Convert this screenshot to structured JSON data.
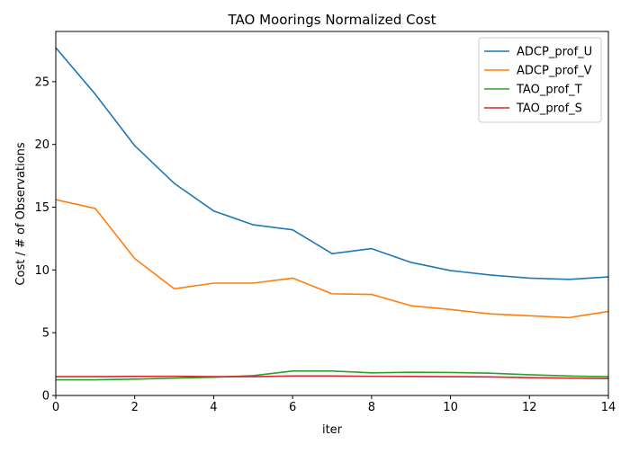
{
  "chart_data": {
    "type": "line",
    "title": "TAO Moorings Normalized Cost",
    "xlabel": "iter",
    "ylabel": "Cost / # of Observations",
    "xlim": [
      0,
      14
    ],
    "ylim": [
      0,
      29
    ],
    "xticks": [
      0,
      2,
      4,
      6,
      8,
      10,
      12,
      14
    ],
    "yticks": [
      0,
      5,
      10,
      15,
      20,
      25
    ],
    "grid": false,
    "legend_position": "top-right",
    "x": [
      0,
      1,
      2,
      3,
      4,
      5,
      6,
      7,
      8,
      9,
      10,
      11,
      12,
      13,
      14
    ],
    "series": [
      {
        "name": "ADCP_prof_U",
        "color": "#1f77b4",
        "values": [
          27.7,
          24.0,
          19.9,
          16.9,
          14.7,
          13.6,
          13.2,
          11.3,
          11.7,
          10.6,
          9.95,
          9.6,
          9.35,
          9.25,
          9.45
        ]
      },
      {
        "name": "ADCP_prof_V",
        "color": "#ff7f0e",
        "values": [
          15.6,
          14.9,
          10.9,
          8.5,
          8.95,
          8.95,
          9.35,
          8.1,
          8.05,
          7.15,
          6.85,
          6.5,
          6.35,
          6.2,
          6.7
        ]
      },
      {
        "name": "TAO_prof_T",
        "color": "#2ca02c",
        "values": [
          1.25,
          1.25,
          1.3,
          1.38,
          1.45,
          1.58,
          1.95,
          1.95,
          1.8,
          1.85,
          1.83,
          1.78,
          1.65,
          1.55,
          1.5
        ]
      },
      {
        "name": "TAO_prof_S",
        "color": "#d62728",
        "values": [
          1.5,
          1.5,
          1.52,
          1.53,
          1.5,
          1.5,
          1.55,
          1.55,
          1.53,
          1.52,
          1.5,
          1.48,
          1.42,
          1.38,
          1.35
        ]
      }
    ]
  }
}
